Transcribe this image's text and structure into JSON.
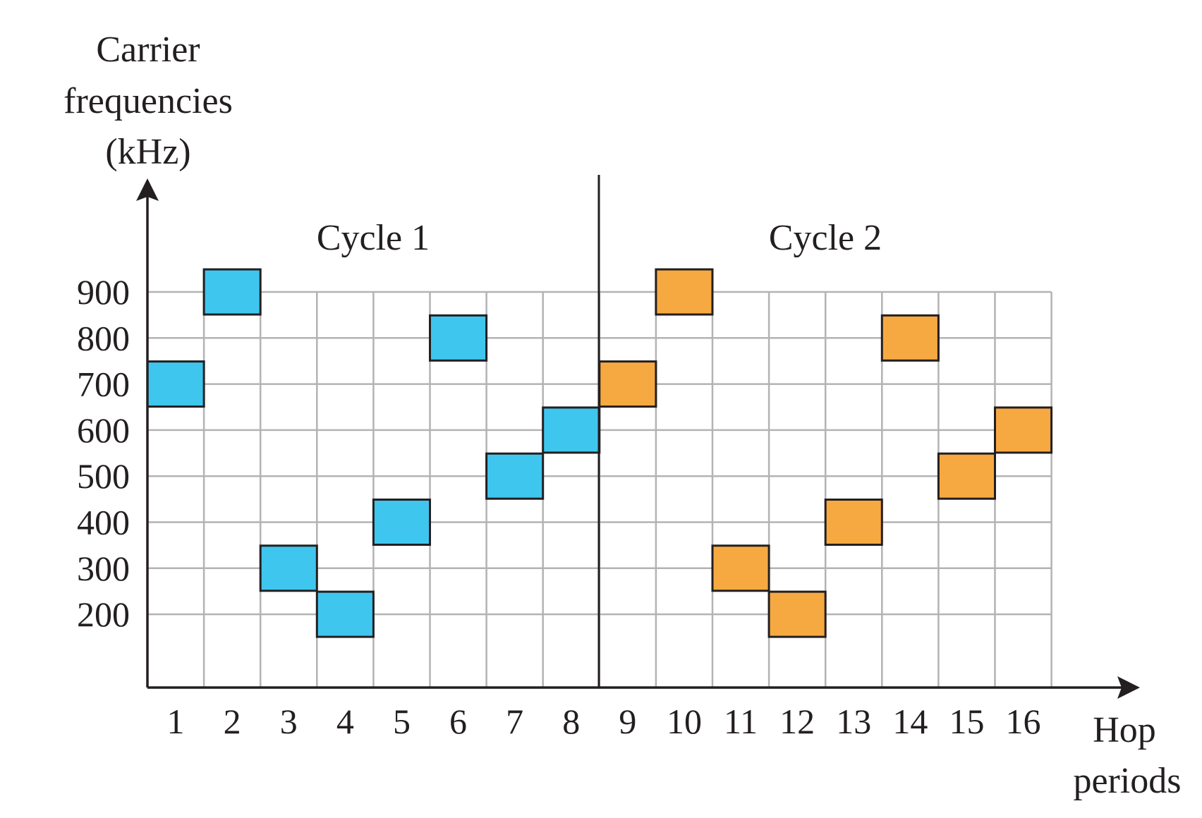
{
  "chart_data": {
    "type": "scatter",
    "ylabel_lines": [
      "Carrier",
      "frequencies",
      "(kHz)"
    ],
    "xlabel_lines": [
      "Hop",
      "periods"
    ],
    "x": [
      1,
      2,
      3,
      4,
      5,
      6,
      7,
      8,
      9,
      10,
      11,
      12,
      13,
      14,
      15,
      16
    ],
    "y_ticks": [
      900,
      800,
      700,
      600,
      500,
      400,
      300,
      200
    ],
    "cycle_labels": [
      "Cycle 1",
      "Cycle 2"
    ],
    "series": [
      {
        "periods": [
          1,
          2,
          3,
          4,
          5,
          6,
          7,
          8
        ],
        "values": [
          700,
          900,
          300,
          200,
          400,
          800,
          500,
          600
        ],
        "color": "#3fc6ef"
      },
      {
        "periods": [
          9,
          10,
          11,
          12,
          13,
          14,
          15,
          16
        ],
        "values": [
          700,
          900,
          300,
          200,
          400,
          800,
          500,
          600
        ],
        "color": "#f7a941"
      }
    ],
    "grid": true
  }
}
